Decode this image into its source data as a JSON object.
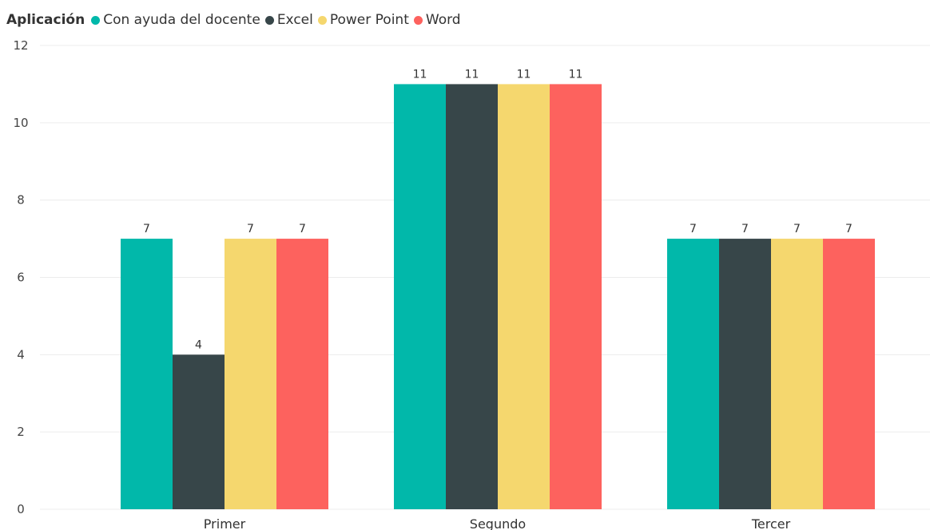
{
  "chart_data": {
    "type": "bar",
    "legend_title": "Aplicación",
    "legend_position": "top-left",
    "categories": [
      "Primer",
      "Segundo",
      "Tercer"
    ],
    "series": [
      {
        "name": "Con ayuda del docente",
        "color": "#01B8AA",
        "values": [
          7,
          11,
          7
        ]
      },
      {
        "name": "Excel",
        "color": "#374649",
        "values": [
          4,
          11,
          7
        ]
      },
      {
        "name": "Power Point",
        "color": "#F5D76E",
        "values": [
          7,
          11,
          7
        ]
      },
      {
        "name": "Word",
        "color": "#FD625E",
        "values": [
          7,
          11,
          7
        ]
      }
    ],
    "yticks": [
      0,
      2,
      4,
      6,
      8,
      10,
      12
    ],
    "ylim": [
      0,
      12
    ],
    "grid": true
  }
}
